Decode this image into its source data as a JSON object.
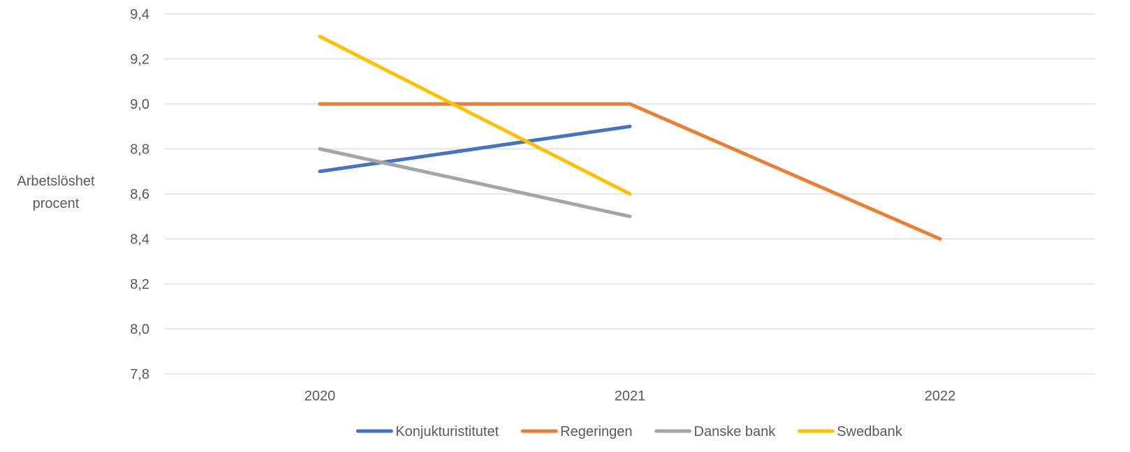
{
  "chart_data": {
    "type": "line",
    "categories": [
      "2020",
      "2021",
      "2022"
    ],
    "series": [
      {
        "name": "Konjukturistitutet",
        "color": "#4472C4",
        "values": [
          8.7,
          8.9,
          null
        ]
      },
      {
        "name": "Regeringen",
        "color": "#ED7D31",
        "values": [
          9.0,
          9.0,
          8.4
        ]
      },
      {
        "name": "Danske bank",
        "color": "#A5A5A5",
        "values": [
          8.8,
          8.5,
          null
        ]
      },
      {
        "name": "Swedbank",
        "color": "#FFC000",
        "values": [
          9.3,
          8.6,
          null
        ]
      }
    ],
    "ylabel_lines": [
      "Arbetslöshet",
      "procent"
    ],
    "ylim": [
      7.8,
      9.4
    ],
    "yticks": [
      "7,8",
      "8,0",
      "8,2",
      "8,4",
      "8,6",
      "8,8",
      "9,0",
      "9,2",
      "9,4"
    ],
    "grid": true,
    "legend_position": "bottom"
  }
}
